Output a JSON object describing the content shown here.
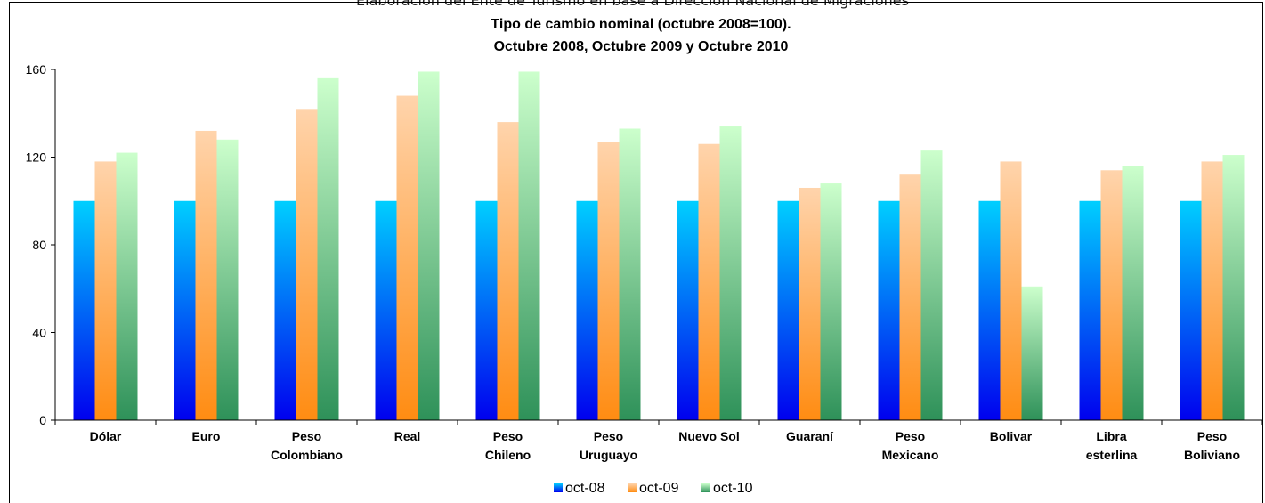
{
  "caption": "Elaboración del Ente de Turismo en base a Dirección Nacional de Migraciones",
  "chart_data": {
    "type": "bar",
    "title": "Tipo de cambio nominal (octubre 2008=100).",
    "subtitle": "Octubre 2008, Octubre 2009 y Octubre 2010",
    "xlabel": "",
    "ylabel": "",
    "ylim": [
      0,
      160
    ],
    "yticks": [
      0,
      40,
      80,
      120,
      160
    ],
    "grid": false,
    "legend_position": "bottom",
    "categories": [
      [
        "Dólar"
      ],
      [
        "Euro"
      ],
      [
        "Peso",
        "Colombiano"
      ],
      [
        "Real"
      ],
      [
        "Peso",
        "Chileno"
      ],
      [
        "Peso",
        "Uruguayo"
      ],
      [
        "Nuevo Sol"
      ],
      [
        "Guaraní"
      ],
      [
        "Peso",
        "Mexicano"
      ],
      [
        "Bolivar"
      ],
      [
        "Libra",
        "esterlina"
      ],
      [
        "Peso",
        "Boliviano"
      ]
    ],
    "series": [
      {
        "name": "oct-08",
        "colors": [
          "#00cfff",
          "#0000ee"
        ],
        "values": [
          100,
          100,
          100,
          100,
          100,
          100,
          100,
          100,
          100,
          100,
          100,
          100
        ]
      },
      {
        "name": "oct-09",
        "colors": [
          "#ffd4ac",
          "#ff8c12"
        ],
        "values": [
          118,
          132,
          142,
          148,
          136,
          127,
          126,
          106,
          112,
          118,
          114,
          118
        ]
      },
      {
        "name": "oct-10",
        "colors": [
          "#ccffcc",
          "#2e9159"
        ],
        "values": [
          122,
          128,
          156,
          159,
          159,
          133,
          134,
          108,
          123,
          61,
          116,
          121
        ]
      }
    ]
  }
}
